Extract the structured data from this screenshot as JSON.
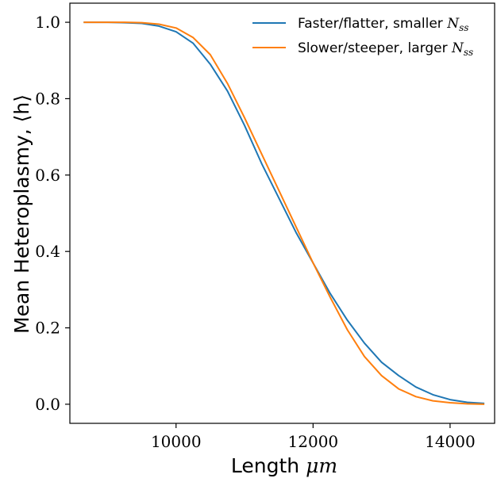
{
  "chart_data": {
    "type": "line",
    "xlabel": "Length",
    "xlabel_unit": "μm",
    "ylabel": "Mean Heteroplasmy, ⟨h⟩",
    "xlim": [
      8450,
      14650
    ],
    "ylim": [
      -0.05,
      1.05
    ],
    "xticks": [
      10000,
      12000,
      14000
    ],
    "yticks": [
      0.0,
      0.2,
      0.4,
      0.6,
      0.8,
      1.0
    ],
    "xtick_labels": [
      "10000",
      "12000",
      "14000"
    ],
    "ytick_labels": [
      "0.0",
      "0.2",
      "0.4",
      "0.6",
      "0.8",
      "1.0"
    ],
    "legend_position": "top-right",
    "grid": false,
    "series": [
      {
        "name": "Faster/flatter, smaller N_ss",
        "legend_text": "Faster/flatter, smaller ",
        "legend_math": "N",
        "legend_sub": "ss",
        "color": "#1f77b4",
        "x": [
          8650,
          9000,
          9250,
          9500,
          9750,
          10000,
          10250,
          10500,
          10750,
          11000,
          11250,
          11500,
          11750,
          12000,
          12250,
          12500,
          12750,
          13000,
          13250,
          13500,
          13750,
          14000,
          14250,
          14500
        ],
        "y": [
          1.0,
          1.0,
          0.999,
          0.997,
          0.99,
          0.975,
          0.945,
          0.89,
          0.82,
          0.73,
          0.63,
          0.54,
          0.45,
          0.37,
          0.29,
          0.22,
          0.16,
          0.11,
          0.075,
          0.045,
          0.025,
          0.012,
          0.005,
          0.002
        ]
      },
      {
        "name": "Slower/steeper, larger N_ss",
        "legend_text": "Slower/steeper, larger ",
        "legend_math": "N",
        "legend_sub": "ss",
        "color": "#ff7f0e",
        "x": [
          8650,
          9000,
          9250,
          9500,
          9750,
          10000,
          10250,
          10500,
          10750,
          11000,
          11250,
          11500,
          11750,
          12000,
          12250,
          12500,
          12750,
          13000,
          13250,
          13500,
          13750,
          14000,
          14250,
          14500
        ],
        "y": [
          1.0,
          1.0,
          1.0,
          0.999,
          0.995,
          0.985,
          0.96,
          0.915,
          0.84,
          0.75,
          0.655,
          0.56,
          0.465,
          0.37,
          0.28,
          0.195,
          0.125,
          0.075,
          0.04,
          0.02,
          0.009,
          0.004,
          0.001,
          0.0
        ]
      }
    ]
  }
}
